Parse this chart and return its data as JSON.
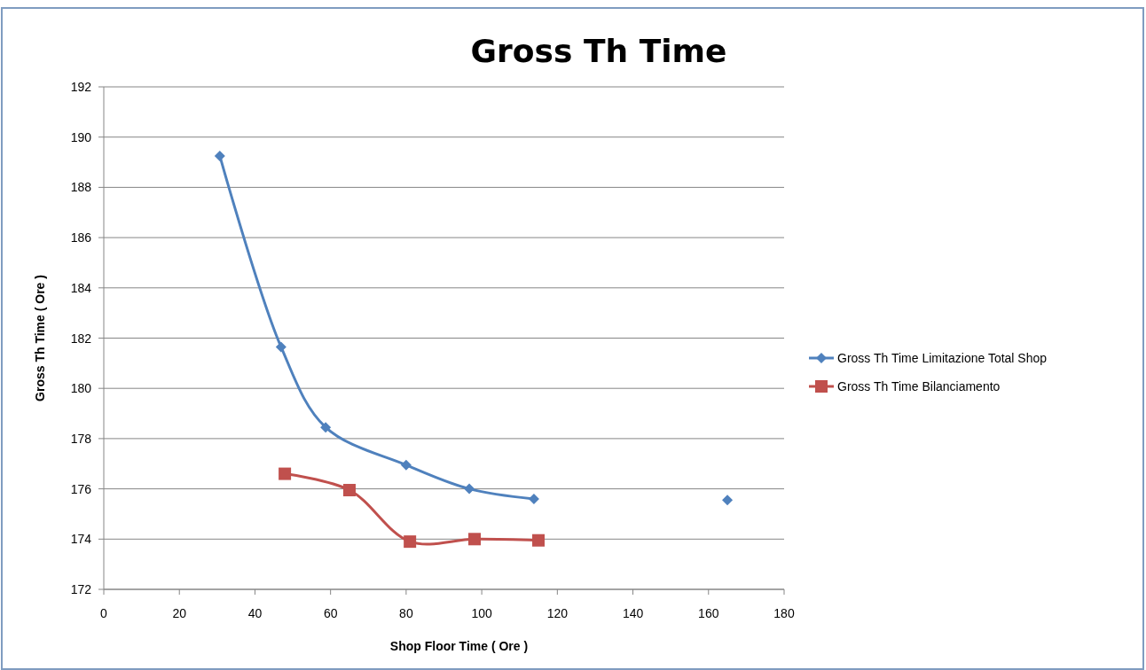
{
  "chart_data": {
    "type": "line",
    "title": "Gross Th Time",
    "xlabel": "Shop Floor Time  ( Ore )",
    "ylabel": "Gross Th Time  ( Ore )",
    "xlim": [
      0,
      180
    ],
    "xticks": [
      0,
      20,
      40,
      60,
      80,
      100,
      120,
      140,
      160,
      180
    ],
    "ylim": [
      172,
      192
    ],
    "yticks": [
      172,
      174,
      176,
      178,
      180,
      182,
      184,
      186,
      188,
      190,
      192
    ],
    "grid": "y",
    "legend": "right",
    "series": [
      {
        "name": "Gross Th Time  Limitazione  Total  Shop",
        "color": "#4f81bd",
        "marker": "diamond",
        "x": [
          30.7,
          46.9,
          58.7,
          80,
          96.7,
          113.8,
          139,
          165
        ],
        "values": [
          189.25,
          181.65,
          178.45,
          176.95,
          176.0,
          175.6,
          null,
          175.55
        ]
      },
      {
        "name": "Gross Th Time  Bilanciamento",
        "color": "#c0504d",
        "marker": "square",
        "x": [
          47.9,
          65,
          81,
          98.1,
          115
        ],
        "values": [
          176.6,
          175.95,
          173.9,
          174.0,
          173.95
        ]
      }
    ]
  }
}
